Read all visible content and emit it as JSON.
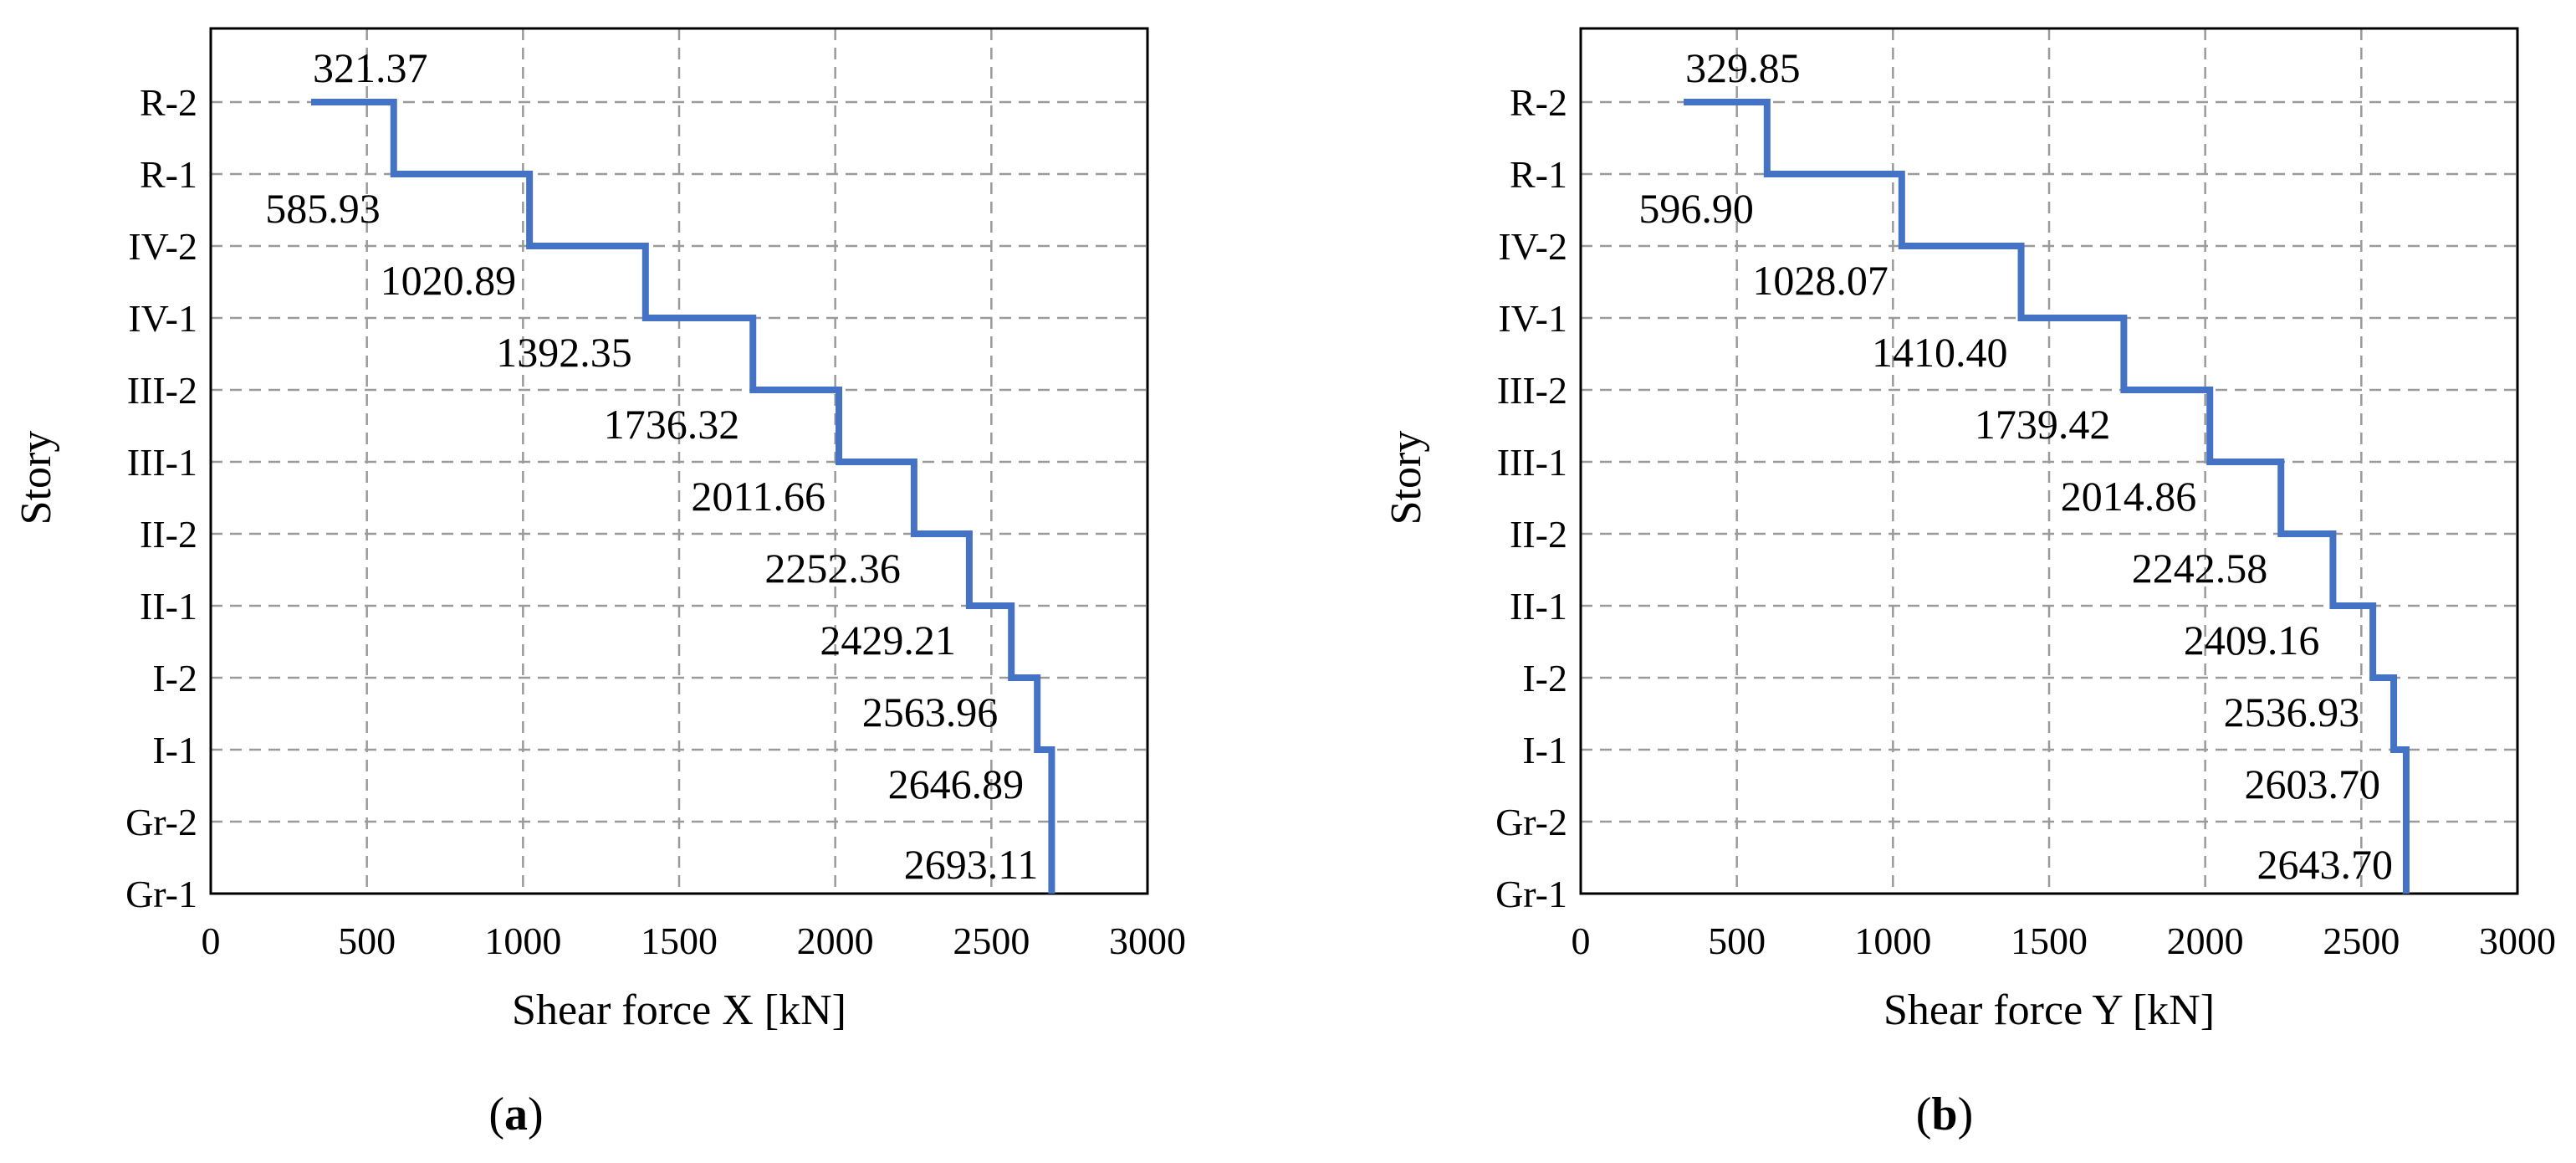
{
  "chart_data": [
    {
      "type": "line",
      "panel": "a",
      "xlabel": "Shear force X [kN]",
      "ylabel": "Story",
      "xlim": [
        0,
        3000
      ],
      "xticks": [
        0,
        500,
        1000,
        1500,
        2000,
        2500,
        3000
      ],
      "categories": [
        "R-2",
        "R-1",
        "IV-2",
        "IV-1",
        "III-2",
        "III-1",
        "II-2",
        "II-1",
        "I-2",
        "I-1",
        "Gr-2",
        "Gr-1"
      ],
      "step_values": [
        321.37,
        585.93,
        1020.89,
        1392.35,
        1736.32,
        2011.66,
        2252.36,
        2429.21,
        2563.96,
        2646.89,
        2693.11
      ],
      "value_labels": [
        "321.37",
        "585.93",
        "1020.89",
        "1392.35",
        "1736.32",
        "2011.66",
        "2252.36",
        "2429.21",
        "2563.96",
        "2646.89",
        "2693.11"
      ],
      "grid": true,
      "line_color": "#4472C4",
      "panel_label": {
        "open": "(",
        "letter": "a",
        "close": ")"
      }
    },
    {
      "type": "line",
      "panel": "b",
      "xlabel": "Shear force Y [kN]",
      "ylabel": "Story",
      "xlim": [
        0,
        3000
      ],
      "xticks": [
        0,
        500,
        1000,
        1500,
        2000,
        2500,
        3000
      ],
      "categories": [
        "R-2",
        "R-1",
        "IV-2",
        "IV-1",
        "III-2",
        "III-1",
        "II-2",
        "II-1",
        "I-2",
        "I-1",
        "Gr-2",
        "Gr-1"
      ],
      "step_values": [
        329.85,
        596.9,
        1028.07,
        1410.4,
        1739.42,
        2014.86,
        2242.58,
        2409.16,
        2536.93,
        2603.7,
        2643.7
      ],
      "value_labels": [
        "329.85",
        "596.90",
        "1028.07",
        "1410.40",
        "1739.42",
        "2014.86",
        "2242.58",
        "2409.16",
        "2536.93",
        "2603.70",
        "2643.70"
      ],
      "grid": true,
      "line_color": "#4472C4",
      "panel_label": {
        "open": "(",
        "letter": "b",
        "close": ")"
      }
    }
  ]
}
